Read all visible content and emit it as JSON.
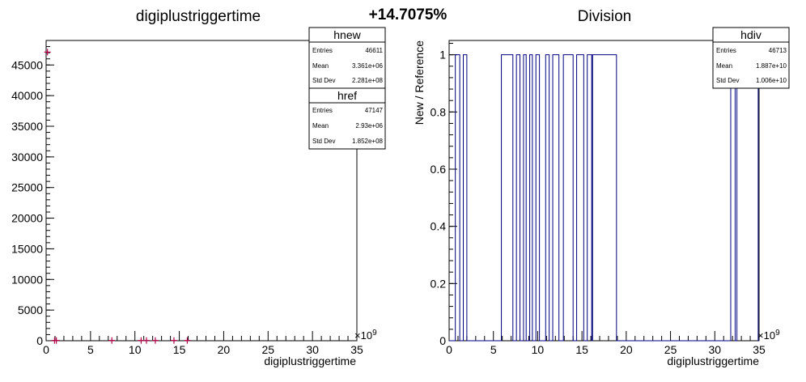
{
  "page": {
    "headline": "+14.7075%"
  },
  "chart_data": [
    {
      "type": "scatter",
      "title": "digiplustriggertime",
      "xlabel": "digiplustriggertime",
      "ylabel": "",
      "x_exponent": "×10",
      "x_exponent_power": "9",
      "xlim": [
        0,
        35
      ],
      "ylim": [
        0,
        49000
      ],
      "x_ticks": [
        "0",
        "5",
        "10",
        "15",
        "20",
        "25",
        "30",
        "35"
      ],
      "y_ticks": [
        "0",
        "5000",
        "10000",
        "15000",
        "20000",
        "25000",
        "30000",
        "35000",
        "40000",
        "45000"
      ],
      "y_tick_values": [
        0,
        5000,
        10000,
        15000,
        20000,
        25000,
        30000,
        35000,
        40000,
        45000
      ],
      "marker_color": "#b4004a",
      "series": [
        {
          "name": "hnew",
          "points": [
            [
              0.15,
              47100
            ],
            [
              0.95,
              40
            ],
            [
              1.15,
              40
            ],
            [
              7.4,
              40
            ],
            [
              10.7,
              40
            ],
            [
              11.3,
              40
            ],
            [
              12.3,
              40
            ],
            [
              14.4,
              40
            ],
            [
              15.9,
              40
            ]
          ]
        }
      ],
      "stats_boxes": [
        {
          "name": "hnew",
          "rows": [
            {
              "label": "Entries",
              "value": "46611"
            },
            {
              "label": "Mean",
              "value": "3.361e+06"
            },
            {
              "label": "Std Dev",
              "value": "2.281e+08"
            }
          ]
        },
        {
          "name": "href",
          "rows": [
            {
              "label": "Entries",
              "value": "47147"
            },
            {
              "label": "Mean",
              "value": "2.93e+06"
            },
            {
              "label": "Std Dev",
              "value": "1.852e+08"
            }
          ]
        }
      ]
    },
    {
      "type": "line",
      "title": "Division",
      "xlabel": "digiplustriggertime",
      "ylabel": "New / Reference",
      "x_exponent": "×10",
      "x_exponent_power": "9",
      "xlim": [
        0,
        35
      ],
      "ylim": [
        0,
        1.05
      ],
      "x_ticks": [
        "0",
        "5",
        "10",
        "15",
        "20",
        "25",
        "30",
        "35"
      ],
      "y_ticks": [
        "0",
        "0.2",
        "0.4",
        "0.6",
        "0.8",
        "1"
      ],
      "y_tick_values": [
        0,
        0.2,
        0.4,
        0.6,
        0.8,
        1
      ],
      "line_color": "#000080",
      "series": [
        {
          "name": "hdiv",
          "segments_at_1": [
            [
              0.7,
              1.2
            ],
            [
              1.6,
              2.0
            ],
            [
              5.9,
              7.2
            ],
            [
              7.6,
              8.0
            ],
            [
              8.4,
              8.7
            ],
            [
              9.1,
              9.4
            ],
            [
              9.8,
              10.2
            ],
            [
              10.9,
              11.3
            ],
            [
              11.7,
              12.4
            ],
            [
              12.9,
              14.0
            ],
            [
              14.4,
              15.2
            ],
            [
              15.6,
              16.1
            ],
            [
              16.2,
              18.9
            ],
            [
              31.8,
              32.3
            ],
            [
              32.5,
              34.9
            ]
          ]
        }
      ],
      "stats_boxes": [
        {
          "name": "hdiv",
          "rows": [
            {
              "label": "Entries",
              "value": "46713"
            },
            {
              "label": "Mean",
              "value": "1.887e+10"
            },
            {
              "label": "Std Dev",
              "value": "1.006e+10"
            }
          ]
        }
      ]
    }
  ]
}
